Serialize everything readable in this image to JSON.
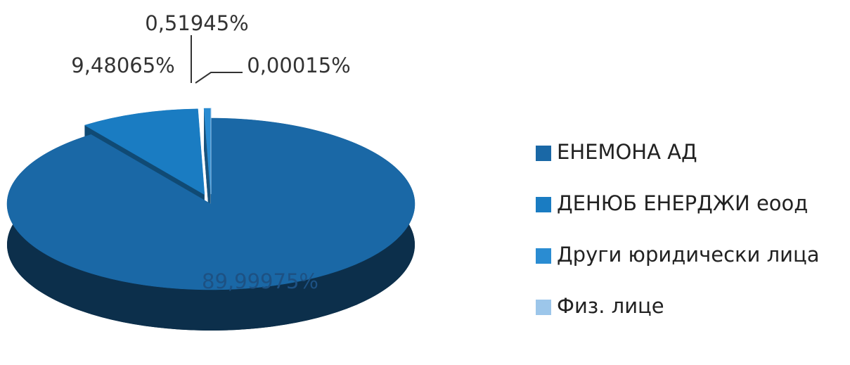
{
  "chart_data": {
    "type": "pie",
    "categories": [
      "ЕНЕМОНА АД",
      "ДЕНЮБ ЕНЕРДЖИ еоод",
      "Други юридически лица",
      "Физ. лице"
    ],
    "values": [
      89.99975,
      9.48065,
      0.51945,
      0.00015
    ],
    "value_labels": [
      "89,99975%",
      "9,48065%",
      "0,51945%",
      "0,00015%"
    ],
    "colors": [
      "#1a68a6",
      "#1a7cc2",
      "#2a8cd2",
      "#9cc6ea"
    ],
    "legend": "right"
  }
}
